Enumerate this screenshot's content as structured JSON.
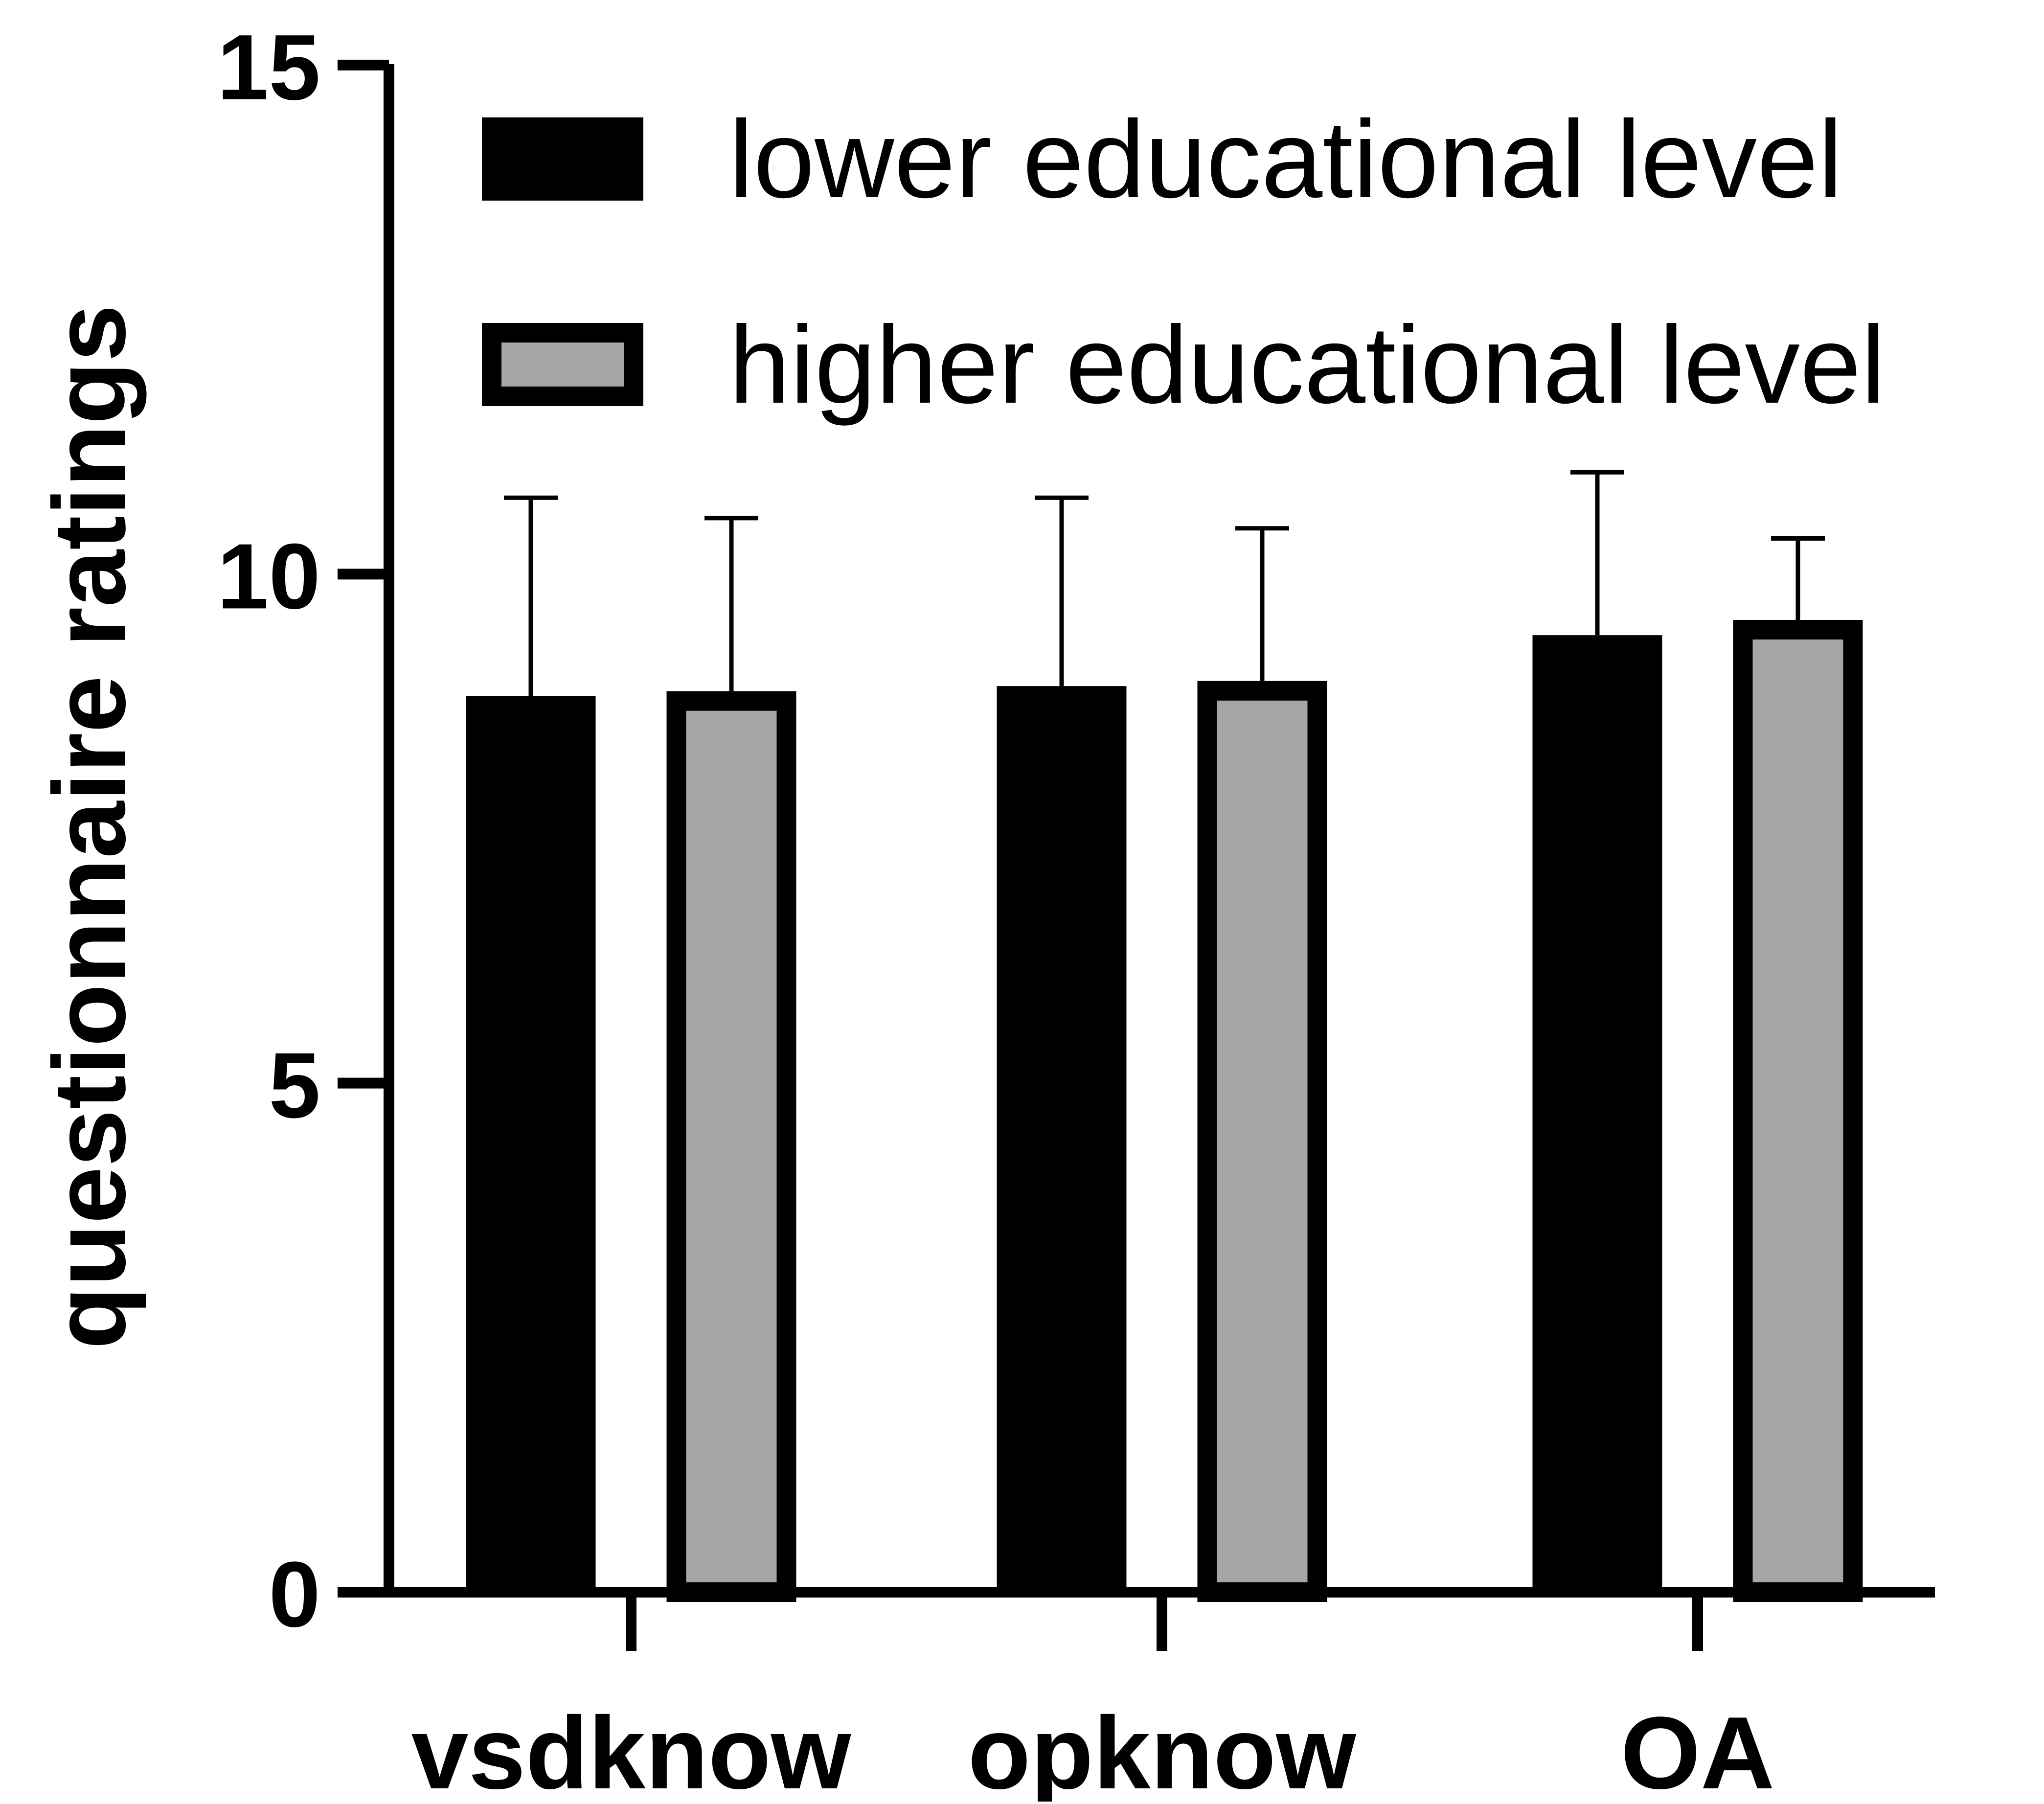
{
  "chart_data": {
    "type": "bar",
    "title": "",
    "xlabel": "",
    "ylabel": "questionnaire ratings",
    "categories": [
      "vsdknow",
      "opknow",
      "OA"
    ],
    "ylim": [
      0,
      15
    ],
    "yticks": [
      0,
      5,
      10,
      15
    ],
    "grid": false,
    "legend_position": "top-right",
    "series": [
      {
        "name": "lower educational level",
        "values": [
          8.8,
          8.9,
          9.4
        ],
        "error": [
          1.95,
          1.85,
          1.6
        ],
        "fill": "#000000",
        "stroke": "#000000"
      },
      {
        "name": "higher educational level",
        "values": [
          8.85,
          8.95,
          9.55
        ],
        "error": [
          1.7,
          1.5,
          0.8
        ],
        "fill": "#a6a6a6",
        "stroke": "#000000"
      }
    ]
  }
}
